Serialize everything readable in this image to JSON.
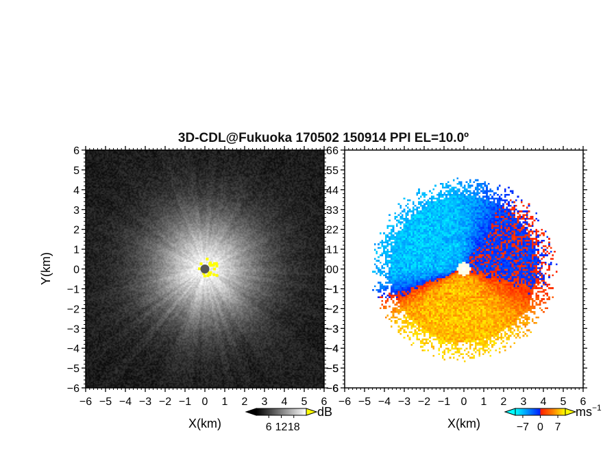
{
  "chart_data": {
    "type": "heatmap",
    "title": "3D-CDL@Fukuoka 170502 150914 PPI EL=10.0º",
    "panels": [
      {
        "name": "signal-panel",
        "xlabel": "X(km)",
        "ylabel": "Y(km)",
        "xlim": [
          -6,
          6
        ],
        "ylim": [
          -6,
          6
        ],
        "xticks": [
          "−6",
          "−5",
          "−4",
          "−3",
          "−2",
          "−1",
          "0",
          "1",
          "2",
          "3",
          "4",
          "5",
          "6"
        ],
        "yticks": [
          "−6",
          "−5",
          "−4",
          "−3",
          "−2",
          "−1",
          "0",
          "1",
          "2",
          "3",
          "4",
          "5",
          "6"
        ],
        "colorbar": {
          "unit": "dB",
          "tick_labels": [
            "6",
            "12",
            "18"
          ],
          "range": [
            0,
            24
          ],
          "colors": [
            "#000000",
            "#ffffff"
          ]
        },
        "center_mark_color": "#ffff00"
      },
      {
        "name": "velocity-panel",
        "xlabel": "X(km)",
        "ylabel": "",
        "xlim": [
          -6,
          6
        ],
        "ylim": [
          -6,
          6
        ],
        "xticks": [
          "−6",
          "−5",
          "−4",
          "−3",
          "−2",
          "−1",
          "0",
          "1",
          "2",
          "3",
          "4",
          "5",
          "6"
        ],
        "yticks": [
          "−6",
          "−5",
          "−4",
          "−3",
          "−2",
          "−1",
          "0",
          "1",
          "2",
          "3",
          "4",
          "5",
          "6"
        ],
        "colorbar": {
          "unit": "ms",
          "unit_exponent": "−1",
          "tick_labels": [
            "−7",
            "0",
            "7"
          ],
          "range": [
            -10,
            10
          ],
          "colors": [
            "#00ffff",
            "#0090ff",
            "#0020ff",
            "#ff2000",
            "#ff8000",
            "#ffff00"
          ]
        },
        "data_radius_km": 4.3
      }
    ]
  }
}
